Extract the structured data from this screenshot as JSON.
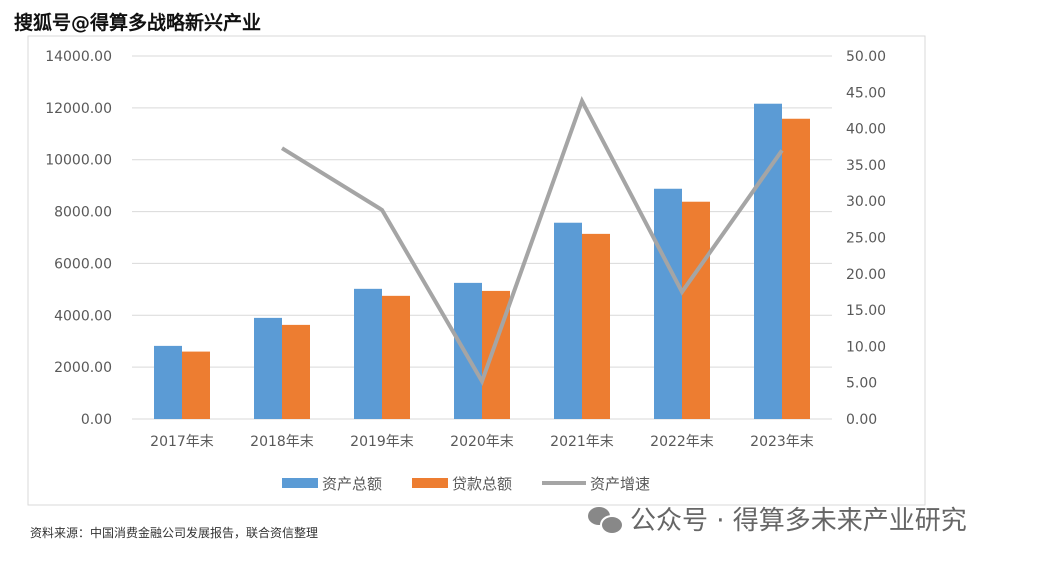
{
  "watermark_top": "搜狐号@得算多战略新兴产业",
  "source_note": "资料来源：中国消费金融公司发展报告，联合资信整理",
  "wechat_watermark": "公众号 · 得算多未来产业研究",
  "colors": {
    "assets": "#5b9bd5",
    "loans": "#ed7d31",
    "growth": "#a5a5a5"
  },
  "chart_data": {
    "type": "bar",
    "title": "",
    "categories": [
      "2017年末",
      "2018年末",
      "2019年末",
      "2020年末",
      "2021年末",
      "2022年末",
      "2023年末"
    ],
    "series": [
      {
        "name": "资产总额",
        "type": "bar",
        "axis": "left",
        "values": [
          2820,
          3900,
          5020,
          5250,
          7570,
          8880,
          12160
        ]
      },
      {
        "name": "贷款总额",
        "type": "bar",
        "axis": "left",
        "values": [
          2600,
          3630,
          4750,
          4940,
          7140,
          8380,
          11580
        ]
      },
      {
        "name": "资产增速",
        "type": "line",
        "axis": "right",
        "values": [
          null,
          37.3,
          28.8,
          5.2,
          43.8,
          17.5,
          37.0
        ]
      }
    ],
    "ylim": [
      0,
      14000
    ],
    "yticks": [
      "0.00",
      "2000.00",
      "4000.00",
      "6000.00",
      "8000.00",
      "10000.00",
      "12000.00",
      "14000.00"
    ],
    "y2lim": [
      0,
      50
    ],
    "y2ticks": [
      "0.00",
      "5.00",
      "10.00",
      "15.00",
      "20.00",
      "25.00",
      "30.00",
      "35.00",
      "40.00",
      "45.00",
      "50.00"
    ],
    "grid": true,
    "legend": "bottom"
  }
}
